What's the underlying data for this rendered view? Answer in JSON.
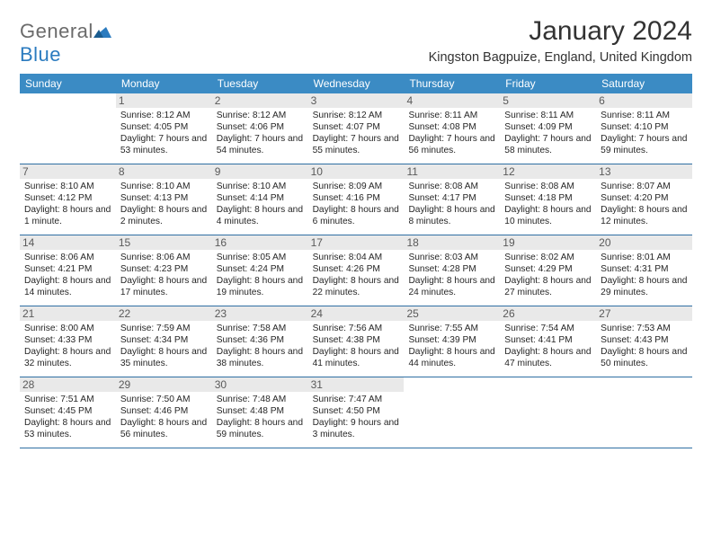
{
  "brand": {
    "name_a": "General",
    "name_b": "Blue"
  },
  "title": "January 2024",
  "location": "Kingston Bagpuize, England, United Kingdom",
  "colors": {
    "header_bg": "#3b8bc4",
    "week_border": "#2f6fa3",
    "daynum_bg": "#e9e9e9",
    "text": "#262626",
    "brand_gray": "#6b6b6b",
    "brand_blue": "#2b7bbf"
  },
  "daysOfWeek": [
    "Sunday",
    "Monday",
    "Tuesday",
    "Wednesday",
    "Thursday",
    "Friday",
    "Saturday"
  ],
  "weeks": [
    [
      {
        "n": "",
        "sr": "",
        "ss": "",
        "dl": ""
      },
      {
        "n": "1",
        "sr": "Sunrise: 8:12 AM",
        "ss": "Sunset: 4:05 PM",
        "dl": "Daylight: 7 hours and 53 minutes."
      },
      {
        "n": "2",
        "sr": "Sunrise: 8:12 AM",
        "ss": "Sunset: 4:06 PM",
        "dl": "Daylight: 7 hours and 54 minutes."
      },
      {
        "n": "3",
        "sr": "Sunrise: 8:12 AM",
        "ss": "Sunset: 4:07 PM",
        "dl": "Daylight: 7 hours and 55 minutes."
      },
      {
        "n": "4",
        "sr": "Sunrise: 8:11 AM",
        "ss": "Sunset: 4:08 PM",
        "dl": "Daylight: 7 hours and 56 minutes."
      },
      {
        "n": "5",
        "sr": "Sunrise: 8:11 AM",
        "ss": "Sunset: 4:09 PM",
        "dl": "Daylight: 7 hours and 58 minutes."
      },
      {
        "n": "6",
        "sr": "Sunrise: 8:11 AM",
        "ss": "Sunset: 4:10 PM",
        "dl": "Daylight: 7 hours and 59 minutes."
      }
    ],
    [
      {
        "n": "7",
        "sr": "Sunrise: 8:10 AM",
        "ss": "Sunset: 4:12 PM",
        "dl": "Daylight: 8 hours and 1 minute."
      },
      {
        "n": "8",
        "sr": "Sunrise: 8:10 AM",
        "ss": "Sunset: 4:13 PM",
        "dl": "Daylight: 8 hours and 2 minutes."
      },
      {
        "n": "9",
        "sr": "Sunrise: 8:10 AM",
        "ss": "Sunset: 4:14 PM",
        "dl": "Daylight: 8 hours and 4 minutes."
      },
      {
        "n": "10",
        "sr": "Sunrise: 8:09 AM",
        "ss": "Sunset: 4:16 PM",
        "dl": "Daylight: 8 hours and 6 minutes."
      },
      {
        "n": "11",
        "sr": "Sunrise: 8:08 AM",
        "ss": "Sunset: 4:17 PM",
        "dl": "Daylight: 8 hours and 8 minutes."
      },
      {
        "n": "12",
        "sr": "Sunrise: 8:08 AM",
        "ss": "Sunset: 4:18 PM",
        "dl": "Daylight: 8 hours and 10 minutes."
      },
      {
        "n": "13",
        "sr": "Sunrise: 8:07 AM",
        "ss": "Sunset: 4:20 PM",
        "dl": "Daylight: 8 hours and 12 minutes."
      }
    ],
    [
      {
        "n": "14",
        "sr": "Sunrise: 8:06 AM",
        "ss": "Sunset: 4:21 PM",
        "dl": "Daylight: 8 hours and 14 minutes."
      },
      {
        "n": "15",
        "sr": "Sunrise: 8:06 AM",
        "ss": "Sunset: 4:23 PM",
        "dl": "Daylight: 8 hours and 17 minutes."
      },
      {
        "n": "16",
        "sr": "Sunrise: 8:05 AM",
        "ss": "Sunset: 4:24 PM",
        "dl": "Daylight: 8 hours and 19 minutes."
      },
      {
        "n": "17",
        "sr": "Sunrise: 8:04 AM",
        "ss": "Sunset: 4:26 PM",
        "dl": "Daylight: 8 hours and 22 minutes."
      },
      {
        "n": "18",
        "sr": "Sunrise: 8:03 AM",
        "ss": "Sunset: 4:28 PM",
        "dl": "Daylight: 8 hours and 24 minutes."
      },
      {
        "n": "19",
        "sr": "Sunrise: 8:02 AM",
        "ss": "Sunset: 4:29 PM",
        "dl": "Daylight: 8 hours and 27 minutes."
      },
      {
        "n": "20",
        "sr": "Sunrise: 8:01 AM",
        "ss": "Sunset: 4:31 PM",
        "dl": "Daylight: 8 hours and 29 minutes."
      }
    ],
    [
      {
        "n": "21",
        "sr": "Sunrise: 8:00 AM",
        "ss": "Sunset: 4:33 PM",
        "dl": "Daylight: 8 hours and 32 minutes."
      },
      {
        "n": "22",
        "sr": "Sunrise: 7:59 AM",
        "ss": "Sunset: 4:34 PM",
        "dl": "Daylight: 8 hours and 35 minutes."
      },
      {
        "n": "23",
        "sr": "Sunrise: 7:58 AM",
        "ss": "Sunset: 4:36 PM",
        "dl": "Daylight: 8 hours and 38 minutes."
      },
      {
        "n": "24",
        "sr": "Sunrise: 7:56 AM",
        "ss": "Sunset: 4:38 PM",
        "dl": "Daylight: 8 hours and 41 minutes."
      },
      {
        "n": "25",
        "sr": "Sunrise: 7:55 AM",
        "ss": "Sunset: 4:39 PM",
        "dl": "Daylight: 8 hours and 44 minutes."
      },
      {
        "n": "26",
        "sr": "Sunrise: 7:54 AM",
        "ss": "Sunset: 4:41 PM",
        "dl": "Daylight: 8 hours and 47 minutes."
      },
      {
        "n": "27",
        "sr": "Sunrise: 7:53 AM",
        "ss": "Sunset: 4:43 PM",
        "dl": "Daylight: 8 hours and 50 minutes."
      }
    ],
    [
      {
        "n": "28",
        "sr": "Sunrise: 7:51 AM",
        "ss": "Sunset: 4:45 PM",
        "dl": "Daylight: 8 hours and 53 minutes."
      },
      {
        "n": "29",
        "sr": "Sunrise: 7:50 AM",
        "ss": "Sunset: 4:46 PM",
        "dl": "Daylight: 8 hours and 56 minutes."
      },
      {
        "n": "30",
        "sr": "Sunrise: 7:48 AM",
        "ss": "Sunset: 4:48 PM",
        "dl": "Daylight: 8 hours and 59 minutes."
      },
      {
        "n": "31",
        "sr": "Sunrise: 7:47 AM",
        "ss": "Sunset: 4:50 PM",
        "dl": "Daylight: 9 hours and 3 minutes."
      },
      {
        "n": "",
        "sr": "",
        "ss": "",
        "dl": ""
      },
      {
        "n": "",
        "sr": "",
        "ss": "",
        "dl": ""
      },
      {
        "n": "",
        "sr": "",
        "ss": "",
        "dl": ""
      }
    ]
  ]
}
